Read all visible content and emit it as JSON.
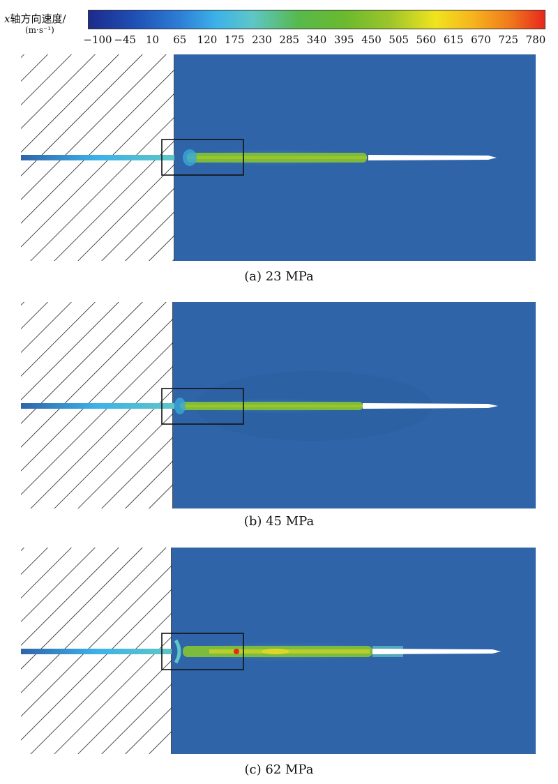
{
  "legend": {
    "title_var": "x",
    "title_text": "轴方向速度/",
    "units": "(m·s⁻¹)",
    "ticks": [
      "−100",
      "−45",
      "10",
      "65",
      "120",
      "175",
      "230",
      "285",
      "340",
      "395",
      "450",
      "505",
      "560",
      "615",
      "670",
      "725",
      "780"
    ],
    "colors": [
      "#1d2a8c",
      "#3cb2e8",
      "#57b94c",
      "#f0e41e",
      "#f07d1c",
      "#e8281c"
    ]
  },
  "panels": [
    {
      "caption": "(a) 23 MPa"
    },
    {
      "caption": "(b) 45 MPa"
    },
    {
      "caption": "(c) 62 MPa"
    }
  ],
  "colors": {
    "field_blue": "#2f64a9",
    "jet_green": "#7cbb3e",
    "jet_cyan": "#3aa8d8",
    "hot_spot": "#e8281c"
  }
}
